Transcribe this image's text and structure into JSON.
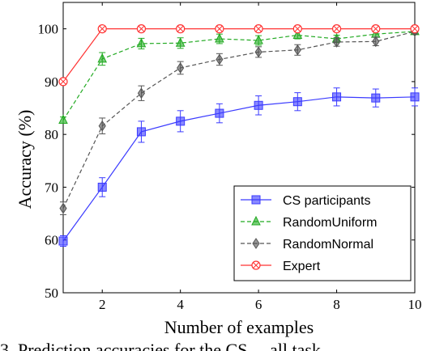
{
  "chart_data": {
    "type": "line",
    "xlabel": "Number of examples",
    "ylabel": "Accuracy (%)",
    "xlim": [
      1,
      10
    ],
    "ylim": [
      50,
      105
    ],
    "x_ticks": [
      2,
      4,
      6,
      8,
      10
    ],
    "y_ticks": [
      50,
      60,
      70,
      80,
      90,
      100
    ],
    "grid": false,
    "legend_position": "bottom-right",
    "x": [
      1,
      2,
      3,
      4,
      5,
      6,
      7,
      8,
      9,
      10
    ],
    "series": [
      {
        "name": "CS participants",
        "color": "#3b3bff",
        "dash": "solid",
        "marker": "square",
        "values": [
          59.8,
          70.0,
          80.5,
          82.5,
          84.0,
          85.5,
          86.2,
          87.1,
          86.9,
          87.1
        ],
        "errors": [
          1.0,
          1.8,
          2.0,
          2.0,
          1.8,
          1.8,
          1.7,
          1.7,
          1.7,
          1.7
        ]
      },
      {
        "name": "RandomUniform",
        "color": "#22aa22",
        "dash": "dashed",
        "marker": "triangle",
        "values": [
          82.7,
          94.3,
          97.2,
          97.3,
          98.1,
          97.8,
          98.8,
          98.1,
          99.0,
          99.5
        ],
        "errors": [
          0.6,
          1.2,
          1.0,
          1.0,
          0.9,
          0.9,
          0.7,
          0.7,
          0.6,
          0.5
        ]
      },
      {
        "name": "RandomNormal",
        "color": "#555555",
        "dash": "dashed",
        "marker": "diamond",
        "values": [
          66.0,
          81.6,
          87.8,
          92.6,
          94.2,
          95.6,
          96.0,
          97.5,
          97.6,
          99.5
        ],
        "errors": [
          1.2,
          1.5,
          1.4,
          1.2,
          1.1,
          1.0,
          1.0,
          0.8,
          0.8,
          0.5
        ]
      },
      {
        "name": "Expert",
        "color": "#ff3333",
        "dash": "solid",
        "marker": "circle",
        "values": [
          90.0,
          100.0,
          100.0,
          100.0,
          100.0,
          100.0,
          100.0,
          100.0,
          100.0,
          100.0
        ],
        "errors": [
          0,
          0,
          0,
          0,
          0,
          0,
          0,
          0,
          0,
          0
        ]
      }
    ]
  },
  "footer_caption": "3. Prediction accuracies for the CS ... all task"
}
